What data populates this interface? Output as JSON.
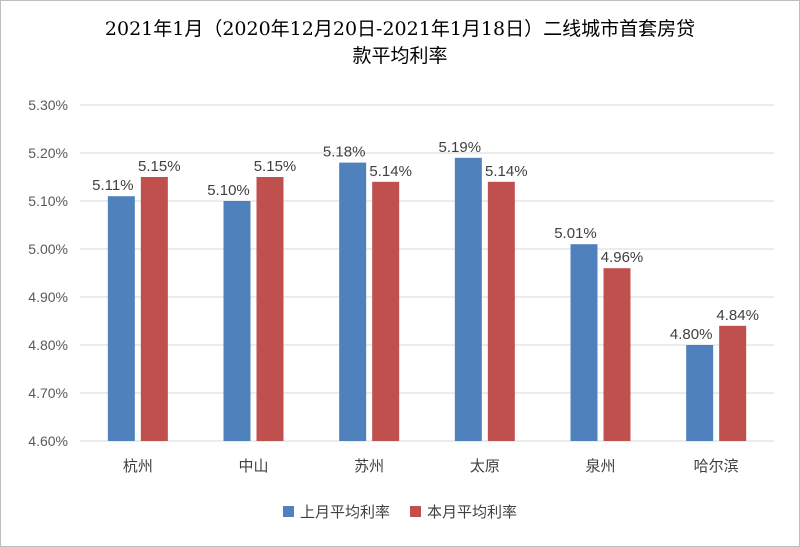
{
  "chart_data": {
    "type": "bar",
    "title_lines": [
      "2021年1月（2020年12月20日-2021年1月18日）二线城市首套房贷",
      "款平均利率"
    ],
    "categories": [
      "杭州",
      "中山",
      "苏州",
      "太原",
      "泉州",
      "哈尔滨"
    ],
    "series": [
      {
        "name": "上月平均利率",
        "color": "#4f81bd",
        "values": [
          5.11,
          5.1,
          5.18,
          5.19,
          5.01,
          4.8
        ],
        "labels": [
          "5.11%",
          "5.10%",
          "5.18%",
          "5.19%",
          "5.01%",
          "4.80%"
        ]
      },
      {
        "name": "本月平均利率",
        "color": "#c0504d",
        "values": [
          5.15,
          5.15,
          5.14,
          5.14,
          4.96,
          4.84
        ],
        "labels": [
          "5.15%",
          "5.15%",
          "5.14%",
          "5.14%",
          "4.96%",
          "4.84%"
        ]
      }
    ],
    "ylim": [
      4.6,
      5.3
    ],
    "yticks": [
      "4.60%",
      "4.70%",
      "4.80%",
      "4.90%",
      "5.00%",
      "5.10%",
      "5.20%",
      "5.30%"
    ],
    "grid": true,
    "legend_position": "bottom"
  }
}
